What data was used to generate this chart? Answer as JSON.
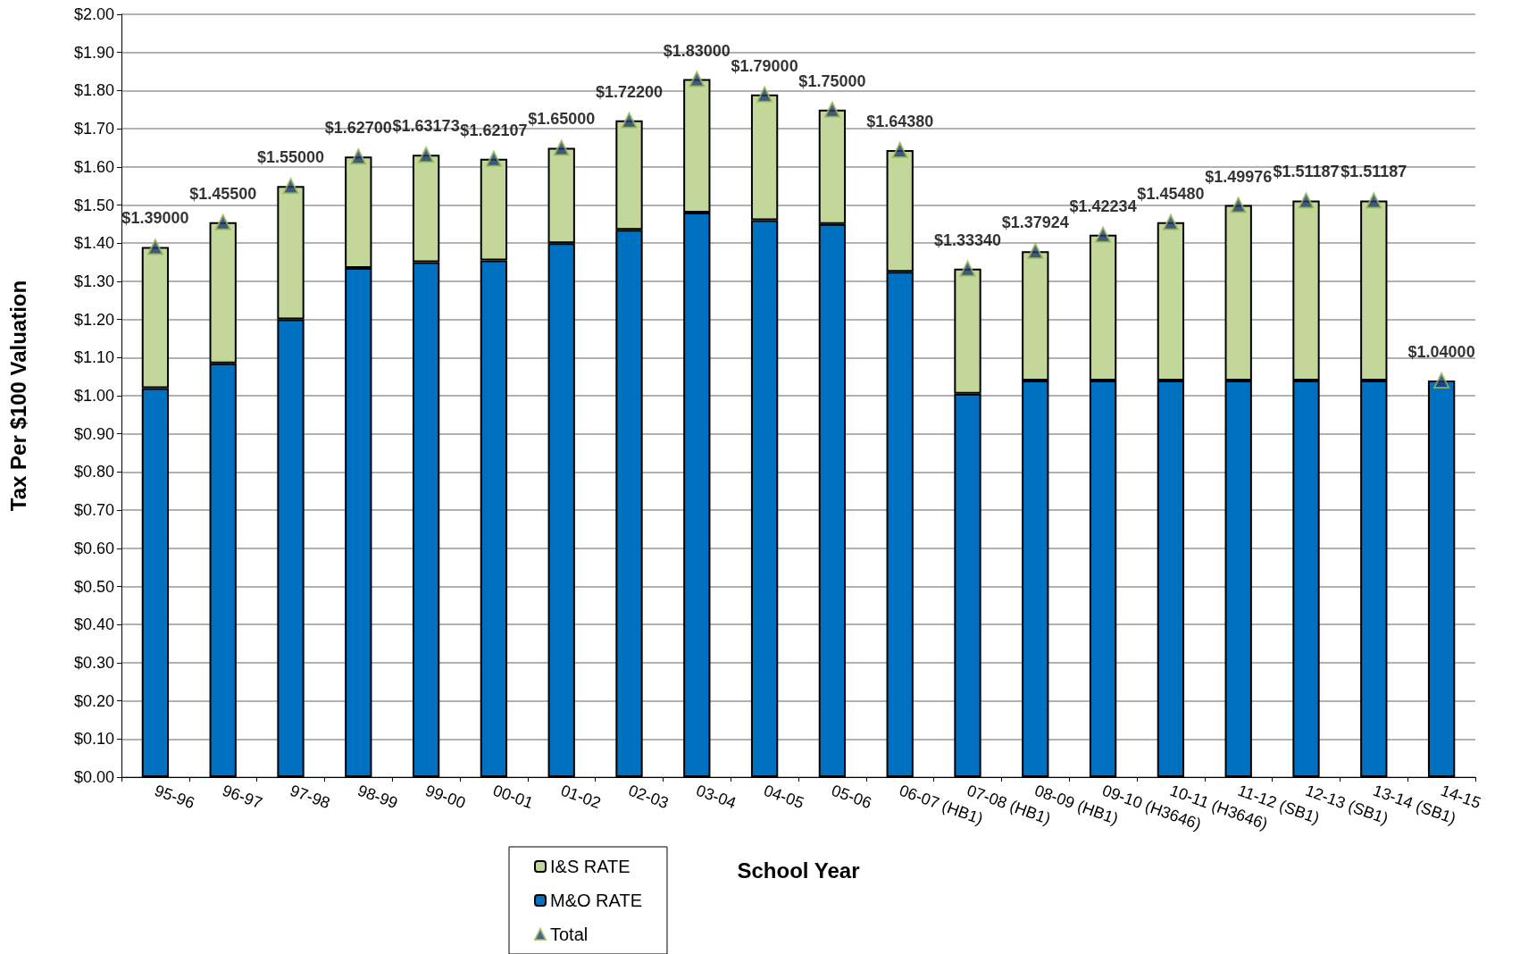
{
  "chart_data": {
    "type": "bar",
    "stacked": true,
    "xlabel": "School Year",
    "ylabel": "Tax Per $100 Valuation",
    "categories": [
      "95-96",
      "96-97",
      "97-98",
      "98-99",
      "99-00",
      "00-01",
      "01-02",
      "02-03",
      "03-04",
      "04-05",
      "05-06",
      "06-07 (HB1)",
      "07-08 (HB1)",
      "08-09 (HB1)",
      "09-10 (H3646)",
      "10-11 (H3646)",
      "11-12 (SB1)",
      "12-13 (SB1)",
      "13-14 (SB1)",
      "14-15"
    ],
    "series": [
      {
        "name": "M&O RATE",
        "color": "#0070c0",
        "values": [
          1.02,
          1.085,
          1.2,
          1.335,
          1.35,
          1.355,
          1.4,
          1.435,
          1.48,
          1.46,
          1.45,
          1.325,
          1.005,
          1.04,
          1.04,
          1.04,
          1.04,
          1.04,
          1.04,
          1.04
        ]
      },
      {
        "name": "I&S RATE",
        "color": "#c4d79b",
        "values": [
          0.37,
          0.37,
          0.35,
          0.292,
          0.282,
          0.266,
          0.25,
          0.287,
          0.35,
          0.33,
          0.3,
          0.319,
          0.328,
          0.339,
          0.382,
          0.415,
          0.46,
          0.472,
          0.472,
          null
        ]
      },
      {
        "name": "Total",
        "type": "scatter",
        "color": "#1f3a6e",
        "marker": "triangle",
        "x": [
          "95-96",
          "96-97",
          "97-98",
          "98-99",
          "99-00",
          "00-01",
          "01-02",
          "02-03",
          "03-04",
          "04-05",
          "05-06",
          "06-07 (HB1)",
          "07-08 (HB1)",
          "08-09 (HB1)",
          "09-10 (H3646)",
          "10-11 (H3646)",
          "11-12 (SB1)",
          "12-13 (SB1)",
          "13-14 (SB1)",
          "14-15"
        ],
        "values": [
          1.39,
          1.455,
          1.55,
          1.627,
          1.63173,
          1.62107,
          1.65,
          1.722,
          1.83,
          1.79,
          1.75,
          1.6438,
          1.3334,
          1.37924,
          1.42234,
          1.4548,
          1.49976,
          1.51187,
          1.51187,
          1.04
        ],
        "value_labels": [
          "$1.39000",
          "$1.45500",
          "$1.55000",
          "$1.62700",
          "$1.63173",
          "$1.62107",
          "$1.65000",
          "$1.72200",
          "$1.83000",
          "$1.79000",
          "$1.75000",
          "$1.64380",
          "$1.33340",
          "$1.37924",
          "$1.42234",
          "$1.45480",
          "$1.49976",
          "$1.51187",
          "$1.51187",
          "$1.04000"
        ]
      }
    ],
    "ylim": [
      0,
      2
    ],
    "yticks": [
      {
        "value": 0,
        "label": "$0.00"
      },
      {
        "value": 0.1,
        "label": "$0.10"
      },
      {
        "value": 0.2,
        "label": "$0.20"
      },
      {
        "value": 0.3,
        "label": "$0.30"
      },
      {
        "value": 0.4,
        "label": "$0.40"
      },
      {
        "value": 0.5,
        "label": "$0.50"
      },
      {
        "value": 0.6,
        "label": "$0.60"
      },
      {
        "value": 0.7,
        "label": "$0.70"
      },
      {
        "value": 0.8,
        "label": "$0.80"
      },
      {
        "value": 0.9,
        "label": "$0.90"
      },
      {
        "value": 1,
        "label": "$1.00"
      },
      {
        "value": 1.1,
        "label": "$1.10"
      },
      {
        "value": 1.2,
        "label": "$1.20"
      },
      {
        "value": 1.3,
        "label": "$1.30"
      },
      {
        "value": 1.4,
        "label": "$1.40"
      },
      {
        "value": 1.5,
        "label": "$1.50"
      },
      {
        "value": 1.6,
        "label": "$1.60"
      },
      {
        "value": 1.7,
        "label": "$1.70"
      },
      {
        "value": 1.8,
        "label": "$1.80"
      },
      {
        "value": 1.9,
        "label": "$1.90"
      },
      {
        "value": 2,
        "label": "$2.00"
      }
    ],
    "grid": "y",
    "legend": "bottom"
  }
}
